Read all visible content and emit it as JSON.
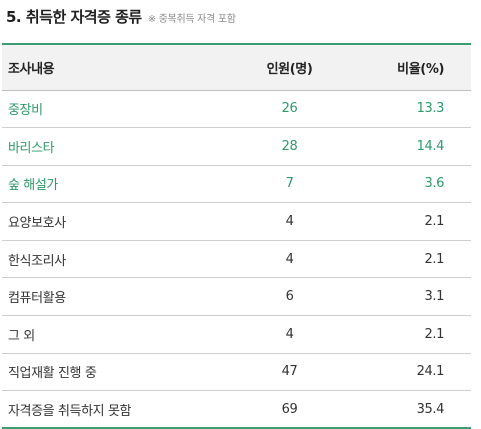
{
  "header": {
    "title": "5. 취득한 자격증 종류",
    "note": "※ 중복취득 자격 포함"
  },
  "table": {
    "columns": [
      "조사내용",
      "인원(명)",
      "비율(%)"
    ],
    "rows": [
      {
        "item": "중장비",
        "count": "26",
        "ratio": "13.3",
        "highlight": true
      },
      {
        "item": "바리스타",
        "count": "28",
        "ratio": "14.4",
        "highlight": true
      },
      {
        "item": "숲 해설가",
        "count": "7",
        "ratio": "3.6",
        "highlight": true
      },
      {
        "item": "요양보호사",
        "count": "4",
        "ratio": "2.1",
        "highlight": false
      },
      {
        "item": "한식조리사",
        "count": "4",
        "ratio": "2.1",
        "highlight": false
      },
      {
        "item": "컴퓨터활용",
        "count": "6",
        "ratio": "3.1",
        "highlight": false
      },
      {
        "item": "그 외",
        "count": "4",
        "ratio": "2.1",
        "highlight": false
      },
      {
        "item": "직업재활 진행 중",
        "count": "47",
        "ratio": "24.1",
        "highlight": false
      },
      {
        "item": "자격증을 취득하지 못함",
        "count": "69",
        "ratio": "35.4",
        "highlight": false
      }
    ],
    "highlight_color": "#2e9a6a",
    "rule_color": "#3c9c72"
  }
}
